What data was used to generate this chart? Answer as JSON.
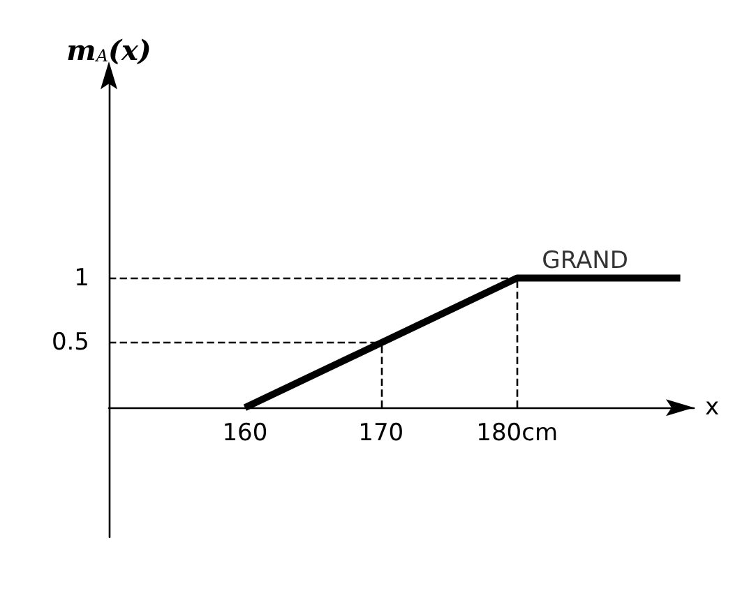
{
  "chart_data": {
    "type": "line",
    "ylabel": "m$_{A}$(x)",
    "xlabel": "x",
    "x": [
      160,
      180,
      192
    ],
    "series": [
      {
        "color": "#000000",
        "values": [
          0,
          1,
          1
        ]
      }
    ],
    "xlim": [
      150,
      193
    ],
    "xticks": [
      160,
      170,
      {
        "value": 180,
        "label": "180cm"
      }
    ],
    "ylim": [
      -1,
      2.5
    ],
    "yticks": [
      0.5,
      1
    ],
    "ref_lines": [
      {
        "axis": "y",
        "value": 1,
        "line_style": "dashed",
        "color": "#000000"
      },
      {
        "axis": "x",
        "value": 180,
        "line_style": "dashed",
        "color": "#000000"
      },
      {
        "axis": "y",
        "value": 0.5,
        "line_style": "dashed",
        "color": "#000000"
      },
      {
        "axis": "x",
        "value": 170,
        "line_style": "dashed",
        "color": "#000000"
      }
    ],
    "annotations": [
      {
        "text": "GRAND",
        "x": 185,
        "y": 1
      }
    ],
    "grid": false,
    "marker": "none",
    "line_style": "solid"
  }
}
